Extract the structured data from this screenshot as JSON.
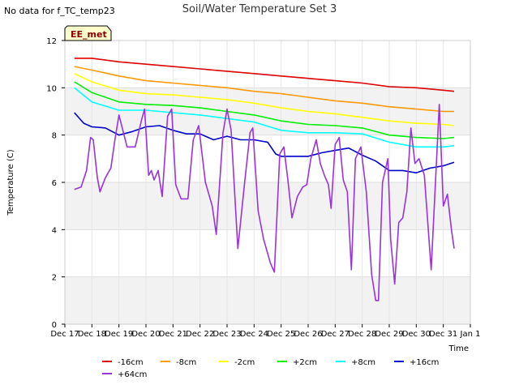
{
  "no_data_note": "No data for f_TC_temp23",
  "site_badge": "EE_met",
  "chart_data": {
    "type": "line",
    "title": "Soil/Water Temperature Set 3",
    "xlabel": "Time",
    "ylabel": "Temperature (C)",
    "xlim": [
      0,
      15
    ],
    "ylim": [
      0,
      12
    ],
    "x_ticks": [
      "Dec 17",
      "Dec 18",
      "Dec 19",
      "Dec 20",
      "Dec 21",
      "Dec 22",
      "Dec 23",
      "Dec 24",
      "Dec 25",
      "Dec 26",
      "Dec 27",
      "Dec 28",
      "Dec 29",
      "Dec 30",
      "Dec 31",
      "Jan 1"
    ],
    "y_ticks": [
      "0",
      "2",
      "4",
      "6",
      "8",
      "10",
      "12"
    ],
    "grid": true,
    "legend_position": "bottom",
    "x_unit": "days since Dec 17",
    "series": [
      {
        "name": "-16cm",
        "color": "#dd0000",
        "x": [
          0.35,
          1,
          2,
          3,
          4,
          5,
          6,
          7,
          8,
          9,
          10,
          11,
          12,
          13,
          14,
          14.4
        ],
        "y": [
          11.25,
          11.25,
          11.1,
          11.0,
          10.9,
          10.8,
          10.7,
          10.6,
          10.5,
          10.4,
          10.3,
          10.2,
          10.05,
          10.0,
          9.9,
          9.85
        ]
      },
      {
        "name": "-8cm",
        "color": "#ff9900",
        "x": [
          0.35,
          1,
          2,
          3,
          4,
          5,
          6,
          7,
          8,
          9,
          10,
          11,
          12,
          13,
          14,
          14.4
        ],
        "y": [
          10.9,
          10.75,
          10.5,
          10.3,
          10.2,
          10.1,
          10.0,
          9.85,
          9.75,
          9.6,
          9.45,
          9.35,
          9.2,
          9.1,
          9.0,
          9.0
        ]
      },
      {
        "name": "-2cm",
        "color": "#ffff00",
        "x": [
          0.35,
          1,
          2,
          3,
          4,
          5,
          6,
          7,
          8,
          9,
          10,
          11,
          12,
          13,
          14,
          14.4
        ],
        "y": [
          10.6,
          10.25,
          9.9,
          9.75,
          9.7,
          9.6,
          9.5,
          9.35,
          9.15,
          9.0,
          8.9,
          8.75,
          8.6,
          8.5,
          8.45,
          8.4
        ]
      },
      {
        "name": "+2cm",
        "color": "#00ee00",
        "x": [
          0.35,
          1,
          2,
          3,
          4,
          5,
          6,
          7,
          8,
          9,
          10,
          11,
          12,
          13,
          14,
          14.4
        ],
        "y": [
          10.25,
          9.8,
          9.4,
          9.3,
          9.25,
          9.15,
          9.0,
          8.85,
          8.6,
          8.45,
          8.4,
          8.3,
          8.0,
          7.9,
          7.85,
          7.9
        ]
      },
      {
        "name": "+8cm",
        "color": "#00ffff",
        "x": [
          0.35,
          1,
          2,
          3,
          4,
          5,
          6,
          7,
          8,
          9,
          10,
          11,
          12,
          13,
          14,
          14.4
        ],
        "y": [
          10.0,
          9.4,
          9.05,
          9.05,
          8.95,
          8.85,
          8.7,
          8.55,
          8.2,
          8.1,
          8.1,
          8.05,
          7.7,
          7.5,
          7.5,
          7.55
        ]
      },
      {
        "name": "+16cm",
        "color": "#0000cc",
        "x": [
          0.35,
          0.7,
          1,
          1.5,
          2,
          2.5,
          3,
          3.5,
          4,
          4.5,
          5,
          5.5,
          6,
          6.5,
          7,
          7.5,
          7.8,
          8,
          9,
          9.5,
          10,
          10.5,
          11,
          11.3,
          11.5,
          12,
          12.5,
          13,
          13.5,
          14,
          14.4
        ],
        "y": [
          8.95,
          8.5,
          8.35,
          8.3,
          8.0,
          8.15,
          8.35,
          8.4,
          8.2,
          8.05,
          8.05,
          7.8,
          7.95,
          7.8,
          7.8,
          7.7,
          7.2,
          7.1,
          7.1,
          7.25,
          7.35,
          7.45,
          7.15,
          7.0,
          6.9,
          6.5,
          6.5,
          6.4,
          6.6,
          6.7,
          6.85
        ]
      },
      {
        "name": "+64cm",
        "color": "#9933dd",
        "x": [
          0.35,
          0.6,
          0.8,
          0.95,
          1.05,
          1.2,
          1.3,
          1.5,
          1.7,
          1.85,
          2.0,
          2.1,
          2.3,
          2.6,
          2.85,
          2.95,
          3.1,
          3.2,
          3.3,
          3.45,
          3.6,
          3.8,
          3.95,
          4.1,
          4.3,
          4.55,
          4.75,
          4.95,
          5.2,
          5.45,
          5.6,
          5.85,
          6.0,
          6.15,
          6.4,
          6.65,
          6.85,
          6.95,
          7.15,
          7.35,
          7.6,
          7.75,
          7.95,
          8.1,
          8.25,
          8.4,
          8.6,
          8.8,
          8.95,
          9.1,
          9.3,
          9.45,
          9.6,
          9.75,
          9.85,
          10.0,
          10.15,
          10.3,
          10.45,
          10.6,
          10.75,
          10.95,
          11.15,
          11.35,
          11.5,
          11.6,
          11.75,
          11.95,
          12.05,
          12.2,
          12.35,
          12.5,
          12.65,
          12.8,
          12.95,
          13.1,
          13.3,
          13.55,
          13.7,
          13.85,
          14.0,
          14.15,
          14.3,
          14.4
        ],
        "y": [
          5.7,
          5.8,
          6.5,
          7.9,
          7.8,
          6.2,
          5.6,
          6.2,
          6.6,
          7.8,
          8.85,
          8.4,
          7.5,
          7.5,
          8.7,
          9.1,
          6.3,
          6.5,
          6.1,
          6.5,
          5.4,
          8.8,
          9.1,
          5.9,
          5.3,
          5.3,
          7.8,
          8.4,
          6.0,
          5.0,
          3.8,
          8.1,
          9.1,
          8.2,
          3.2,
          6.0,
          8.1,
          8.3,
          4.8,
          3.6,
          2.6,
          2.2,
          7.2,
          7.5,
          6.1,
          4.5,
          5.4,
          5.8,
          5.9,
          7.0,
          7.8,
          6.8,
          6.3,
          5.9,
          4.9,
          7.6,
          7.9,
          6.1,
          5.6,
          2.3,
          7.0,
          7.5,
          5.6,
          2.1,
          1.0,
          1.0,
          6.0,
          7.0,
          3.6,
          1.7,
          4.3,
          4.5,
          5.6,
          8.3,
          6.8,
          7.0,
          6.3,
          2.3,
          5.8,
          9.3,
          5.0,
          5.5,
          4.0,
          3.2
        ]
      }
    ]
  }
}
